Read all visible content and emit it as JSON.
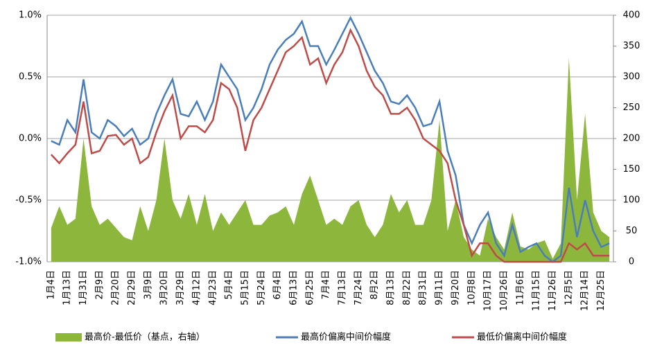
{
  "chart_data": {
    "type": "area-line",
    "categories": [
      "1月4日",
      null,
      "1月13日",
      null,
      "1月31日",
      null,
      "2月9日",
      null,
      "2月20日",
      null,
      "2月29日",
      null,
      "3月9日",
      null,
      "3月20日",
      null,
      "3月29日",
      null,
      "4月12日",
      null,
      "4月23日",
      null,
      "5月4日",
      null,
      "5月15日",
      null,
      "5月24日",
      null,
      "6月4日",
      null,
      "6月13日",
      null,
      "6月25日",
      null,
      "7月4日",
      null,
      "7月13日",
      null,
      "7月24日",
      null,
      "8月2日",
      null,
      "8月13日",
      null,
      "8月22日",
      null,
      "8月31日",
      null,
      "9月11日",
      null,
      "9月20日",
      null,
      "10月8日",
      null,
      "10月17日",
      null,
      "10月26日",
      null,
      "11月6日",
      null,
      "11月15日",
      null,
      "11月26日",
      null,
      "12月5日",
      null,
      "12月14日",
      null,
      "12月25日",
      null
    ],
    "series": [
      {
        "name": "最高价-最低价（基点，右轴）",
        "color": "#8db63c",
        "kind": "area",
        "axis": "y2",
        "values": [
          55,
          90,
          60,
          70,
          200,
          90,
          60,
          70,
          55,
          40,
          35,
          90,
          50,
          100,
          200,
          100,
          70,
          110,
          60,
          110,
          50,
          80,
          60,
          80,
          100,
          60,
          60,
          75,
          80,
          90,
          60,
          110,
          140,
          100,
          60,
          70,
          60,
          90,
          100,
          60,
          40,
          60,
          110,
          80,
          100,
          60,
          60,
          100,
          230,
          50,
          100,
          40,
          20,
          10,
          70,
          40,
          20,
          80,
          25,
          20,
          30,
          35,
          5,
          30,
          330,
          100,
          240,
          80,
          50,
          40
        ]
      },
      {
        "name": "最高价偏离中间价幅度",
        "color": "#4a7ebb",
        "kind": "line",
        "values": [
          -0.02,
          -0.05,
          0.15,
          0.05,
          0.48,
          0.05,
          0.0,
          0.15,
          0.1,
          0.02,
          0.08,
          -0.05,
          0.0,
          0.2,
          0.35,
          0.48,
          0.2,
          0.18,
          0.3,
          0.15,
          0.3,
          0.6,
          0.5,
          0.4,
          0.15,
          0.25,
          0.4,
          0.6,
          0.72,
          0.8,
          0.85,
          0.95,
          0.75,
          0.75,
          0.6,
          0.72,
          0.85,
          0.98,
          0.85,
          0.7,
          0.55,
          0.45,
          0.3,
          0.28,
          0.35,
          0.25,
          0.1,
          0.12,
          0.3,
          -0.1,
          -0.3,
          -0.7,
          -0.85,
          -0.7,
          -0.6,
          -0.85,
          -0.95,
          -0.7,
          -0.92,
          -0.88,
          -0.85,
          -0.95,
          -1.0,
          -0.95,
          -0.4,
          -0.8,
          -0.5,
          -0.75,
          -0.88,
          -0.85
        ]
      },
      {
        "name": "最低价偏离中间价幅度",
        "color": "#be4b48",
        "kind": "line",
        "values": [
          -0.13,
          -0.2,
          -0.12,
          -0.05,
          0.3,
          -0.12,
          -0.1,
          0.02,
          0.03,
          -0.05,
          0.0,
          -0.2,
          -0.15,
          0.05,
          0.22,
          0.35,
          0.0,
          0.1,
          0.1,
          0.05,
          0.15,
          0.45,
          0.4,
          0.25,
          -0.1,
          0.15,
          0.25,
          0.4,
          0.55,
          0.7,
          0.75,
          0.82,
          0.6,
          0.65,
          0.45,
          0.6,
          0.7,
          0.88,
          0.75,
          0.55,
          0.42,
          0.35,
          0.2,
          0.2,
          0.25,
          0.15,
          0.0,
          -0.05,
          -0.1,
          -0.2,
          -0.5,
          -0.7,
          -0.95,
          -0.85,
          -0.85,
          -0.95,
          -1.0,
          -1.0,
          -1.0,
          -1.0,
          -1.0,
          -1.0,
          -1.0,
          -1.0,
          -0.85,
          -0.9,
          -0.85,
          -0.95,
          -0.95,
          -0.95
        ]
      }
    ],
    "ylim": [
      -1.0,
      1.0
    ],
    "yticks": [
      {
        "value": 1.0,
        "label": "1.0%"
      },
      {
        "value": 0.5,
        "label": "0.5%"
      },
      {
        "value": 0.0,
        "label": "0.0%"
      },
      {
        "value": -0.5,
        "label": "-0.5%"
      },
      {
        "value": -1.0,
        "label": "-1.0%"
      }
    ],
    "y2lim": [
      0,
      400
    ],
    "y2ticks": [
      0,
      50,
      100,
      150,
      200,
      250,
      300,
      350,
      400
    ],
    "grid": true,
    "legend": "bottom"
  }
}
